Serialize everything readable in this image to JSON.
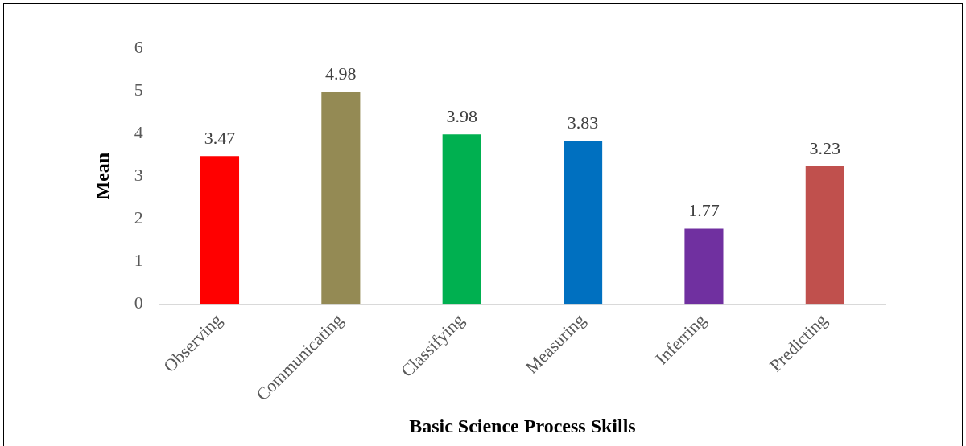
{
  "chart_data": {
    "type": "bar",
    "xlabel": "Basic Science Process Skills",
    "ylabel": "Mean",
    "categories": [
      "Observing",
      "Communicating",
      "Classifying",
      "Measuring",
      "Inferring",
      "Predicting"
    ],
    "values": [
      3.47,
      4.98,
      3.98,
      3.83,
      1.77,
      3.23
    ],
    "colors": [
      "#ff0000",
      "#948a54",
      "#00b050",
      "#0070c0",
      "#7030a0",
      "#c0504d"
    ],
    "ylim": [
      0,
      6
    ],
    "yticks": [
      0,
      1,
      2,
      3,
      4,
      5,
      6
    ],
    "grid": false,
    "legend": false,
    "data_labels": true
  }
}
